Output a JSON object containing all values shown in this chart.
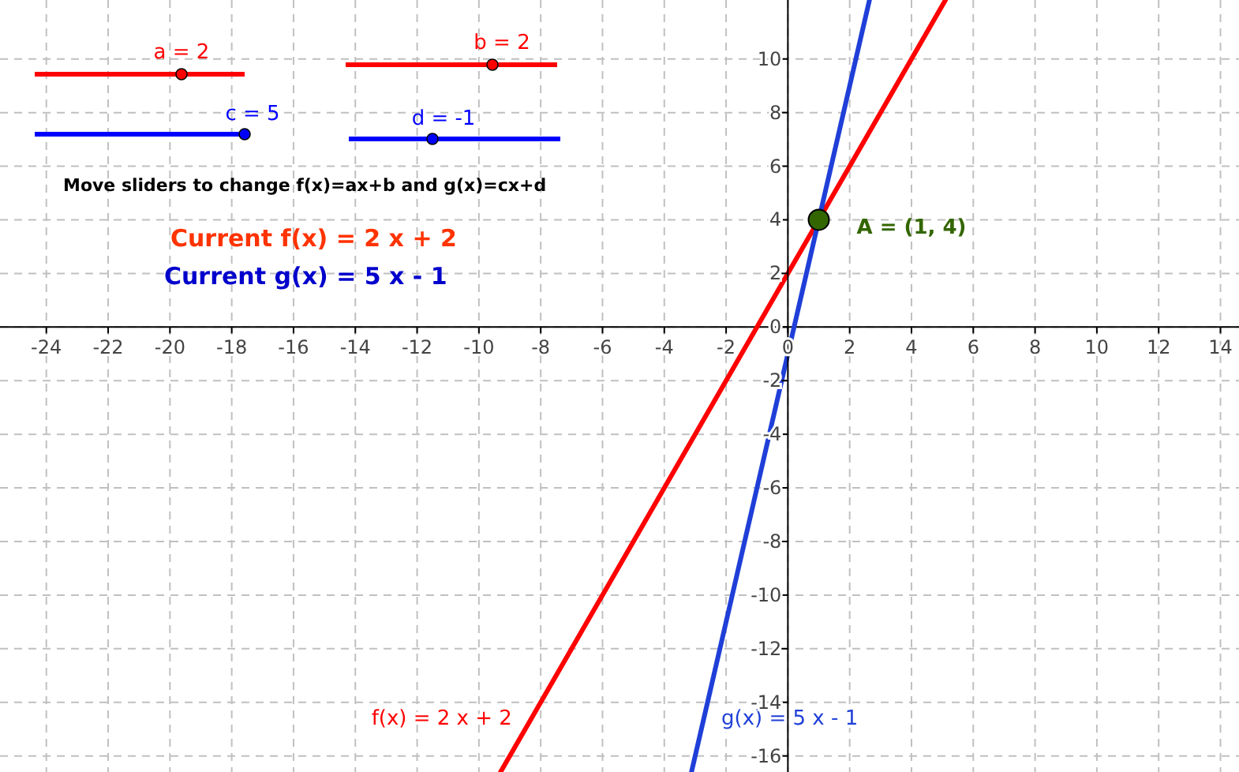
{
  "chart_data": {
    "type": "line",
    "xlim": [
      -25.5,
      14.6
    ],
    "ylim": [
      -16.6,
      12.2
    ],
    "xticks": [
      -24,
      -22,
      -20,
      -18,
      -16,
      -14,
      -12,
      -10,
      -8,
      -6,
      -4,
      -2,
      0,
      2,
      4,
      6,
      8,
      10,
      12,
      14
    ],
    "yticks": [
      -16,
      -14,
      -12,
      -10,
      -8,
      -6,
      -4,
      -2,
      0,
      2,
      4,
      6,
      8,
      10
    ],
    "grid": true,
    "marker": "none",
    "line_style": "solid",
    "series": [
      {
        "name": "f(x) = 2 x + 2",
        "color": "#ff0000",
        "x": [
          -9.3,
          5.1
        ],
        "values": [
          -16.6,
          12.2
        ]
      },
      {
        "name": "g(x) = 5 x - 1",
        "color": "#1f3fd8",
        "x": [
          -3.12,
          2.64
        ],
        "values": [
          -16.6,
          12.2
        ]
      },
      {
        "type": "scatter",
        "color": "#336600",
        "x": [
          1
        ],
        "values": [
          4
        ],
        "marker": "circle"
      }
    ],
    "annotations": [
      "a = 2",
      "b = 2",
      "c = 5",
      "d = -1",
      "Move sliders to change f(x)=ax+b and g(x)=cx+d",
      "Current f(x) = 2 x + 2",
      "Current g(x) = 5 x - 1",
      {
        "text": "A = (1, 4)",
        "x": 1,
        "y": 4
      }
    ]
  }
}
